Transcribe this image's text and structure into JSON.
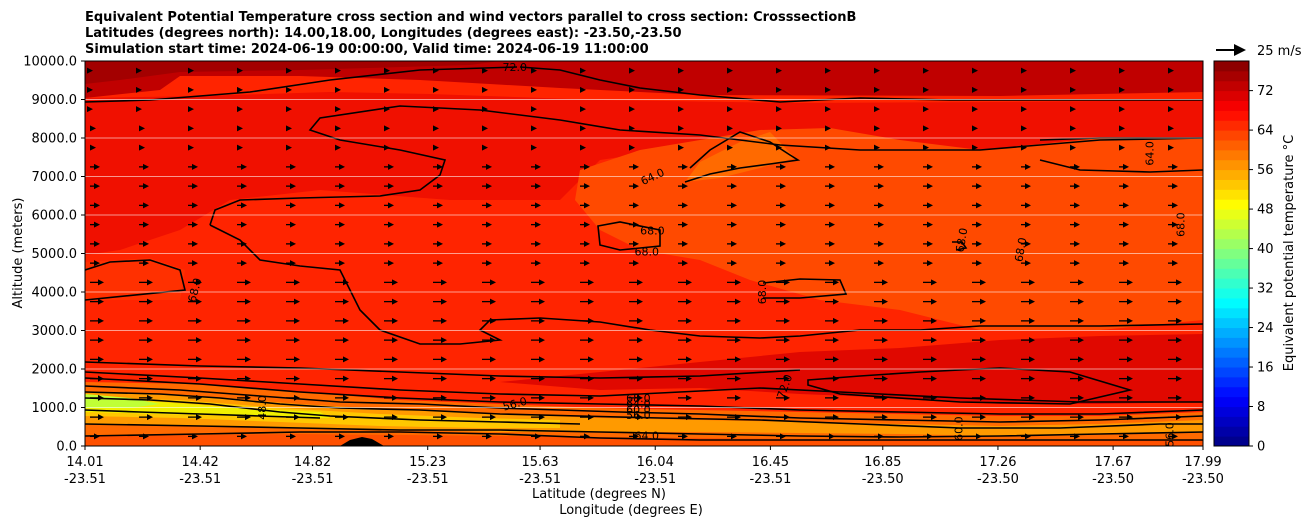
{
  "chart_data": {
    "type": "contourf",
    "title_lines": [
      "Equivalent Potential Temperature cross section and wind vectors parallel to cross section: CrosssectionB",
      "Latitudes (degrees north): 14.00,18.00, Longitudes (degrees east): -23.50,-23.50",
      "Simulation start time: 2024-06-19 00:00:00, Valid time: 2024-06-19 11:00:00"
    ],
    "ylabel": "Altitude (meters)",
    "xlabel_lines": [
      "Latitude (degrees N)",
      "Longitude (degrees E)"
    ],
    "colorbar_label": "Equivalent potential temperature $^\\circ$C",
    "colorbar_label_display": "Equivalent potential temperature °C",
    "quiver_key_label": "25 m/s",
    "xlim": [
      14.01,
      17.99
    ],
    "ylim": [
      0,
      10000
    ],
    "x_ticks": [
      {
        "lat": "14.01",
        "lon": "-23.51",
        "value": 14.01
      },
      {
        "lat": "14.42",
        "lon": "-23.51",
        "value": 14.42
      },
      {
        "lat": "14.82",
        "lon": "-23.51",
        "value": 14.82
      },
      {
        "lat": "15.23",
        "lon": "-23.51",
        "value": 15.23
      },
      {
        "lat": "15.63",
        "lon": "-23.51",
        "value": 15.63
      },
      {
        "lat": "16.04",
        "lon": "-23.51",
        "value": 16.04
      },
      {
        "lat": "16.45",
        "lon": "-23.51",
        "value": 16.45
      },
      {
        "lat": "16.85",
        "lon": "-23.50",
        "value": 16.85
      },
      {
        "lat": "17.26",
        "lon": "-23.50",
        "value": 17.26
      },
      {
        "lat": "17.67",
        "lon": "-23.50",
        "value": 17.67
      },
      {
        "lat": "17.99",
        "lon": "-23.50",
        "value": 17.99
      }
    ],
    "y_ticks": [
      {
        "label": "0.0",
        "value": 0
      },
      {
        "label": "1000.0",
        "value": 1000
      },
      {
        "label": "2000.0",
        "value": 2000
      },
      {
        "label": "3000.0",
        "value": 3000
      },
      {
        "label": "4000.0",
        "value": 4000
      },
      {
        "label": "5000.0",
        "value": 5000
      },
      {
        "label": "6000.0",
        "value": 6000
      },
      {
        "label": "7000.0",
        "value": 7000
      },
      {
        "label": "8000.0",
        "value": 8000
      },
      {
        "label": "9000.0",
        "value": 9000
      },
      {
        "label": "10000.0",
        "value": 10000
      }
    ],
    "colorbar_ticks": [
      {
        "label": "0",
        "value": 0
      },
      {
        "label": "8",
        "value": 8
      },
      {
        "label": "16",
        "value": 16
      },
      {
        "label": "24",
        "value": 24
      },
      {
        "label": "32",
        "value": 32
      },
      {
        "label": "40",
        "value": 40
      },
      {
        "label": "48",
        "value": 48
      },
      {
        "label": "56",
        "value": 56
      },
      {
        "label": "64",
        "value": 64
      },
      {
        "label": "72",
        "value": 72
      }
    ],
    "colorbar_range": [
      0,
      78
    ],
    "colormap": "jet",
    "grid": "horizontal",
    "contour_labels": [
      {
        "text": "72.0",
        "lat": 15.54,
        "alt": 9850,
        "rot": 0
      },
      {
        "text": "64.0",
        "lat": 16.03,
        "alt": 7000,
        "rot": -25
      },
      {
        "text": "64.0",
        "lat": 17.8,
        "alt": 7600,
        "rot": -90
      },
      {
        "text": "68.0",
        "lat": 16.03,
        "alt": 5600,
        "rot": 0
      },
      {
        "text": "68.0",
        "lat": 16.01,
        "alt": 5050,
        "rot": 0
      },
      {
        "text": "68.0",
        "lat": 17.13,
        "alt": 5350,
        "rot": -80
      },
      {
        "text": "68.0",
        "lat": 17.34,
        "alt": 5100,
        "rot": -80
      },
      {
        "text": "68.0",
        "lat": 17.91,
        "alt": 5750,
        "rot": -90
      },
      {
        "text": "68.0",
        "lat": 14.4,
        "alt": 4050,
        "rot": -75
      },
      {
        "text": "68.0",
        "lat": 16.42,
        "alt": 4000,
        "rot": -90
      },
      {
        "text": "72.0",
        "lat": 16.5,
        "alt": 1550,
        "rot": -70
      },
      {
        "text": "48.0",
        "lat": 14.64,
        "alt": 1000,
        "rot": -90
      },
      {
        "text": "56.0",
        "lat": 15.54,
        "alt": 1100,
        "rot": -15
      },
      {
        "text": "68.0",
        "lat": 15.98,
        "alt": 1250,
        "rot": 0
      },
      {
        "text": "64.0",
        "lat": 15.98,
        "alt": 1100,
        "rot": 0
      },
      {
        "text": "60.0",
        "lat": 15.98,
        "alt": 950,
        "rot": 0
      },
      {
        "text": "56.0",
        "lat": 15.98,
        "alt": 800,
        "rot": 0
      },
      {
        "text": "64.0",
        "lat": 16.01,
        "alt": 270,
        "rot": 0
      },
      {
        "text": "60.0",
        "lat": 17.12,
        "alt": 450,
        "rot": -90
      },
      {
        "text": "56.0",
        "lat": 17.87,
        "alt": 300,
        "rot": -90
      }
    ],
    "wind_uniform_direction": "parallel-east",
    "colors": {
      "dark_red": "#a30000",
      "red": "#d80000",
      "bright_red": "#f01400",
      "orange_red": "#ff3a00",
      "orange": "#ff6a00",
      "orange_light": "#ff9a00",
      "yellow_orange": "#ffc800",
      "yellow": "#f0f000",
      "yellow_green": "#c0ff36",
      "terrain": "#000000"
    }
  }
}
